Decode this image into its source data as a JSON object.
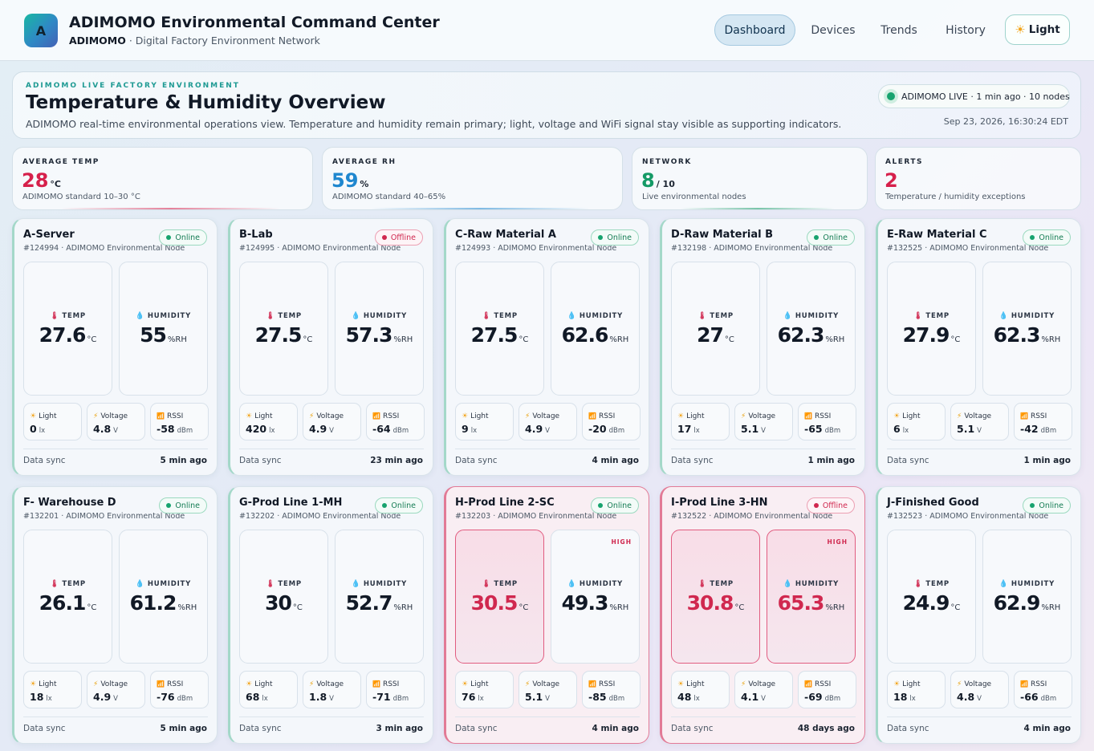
{
  "header": {
    "logo_letter": "A",
    "title": "ADIMOMO Environmental Command Center",
    "brand": "ADIMOMO",
    "subtitle": " · Digital Factory Environment Network",
    "nav": [
      "Dashboard",
      "Devices",
      "Trends",
      "History"
    ],
    "active_nav": "Dashboard",
    "theme_icon": "sun-icon",
    "theme_label": "Light"
  },
  "hero": {
    "eyebrow": "ADIMOMO LIVE FACTORY ENVIRONMENT",
    "title": "Temperature & Humidity Overview",
    "description": "ADIMOMO real-time environmental operations view. Temperature and humidity remain primary; light, voltage and WiFi signal stay visible as supporting indicators.",
    "live_status": "ADIMOMO LIVE · 1 min ago · 10 nodes",
    "datetime": "Sep 23, 2026, 16:30:24 EDT"
  },
  "stats": [
    {
      "label": "AVERAGE TEMP",
      "value": "28",
      "unit": "°C",
      "note": "ADIMOMO standard 10–30 °C",
      "color": "#d6204b"
    },
    {
      "label": "AVERAGE RH",
      "value": "59",
      "unit": "%",
      "note": "ADIMOMO standard 40–65%",
      "color": "#1f87cf"
    },
    {
      "label": "NETWORK",
      "value": "8",
      "unit": "/ 10",
      "note": "Live environmental nodes",
      "color": "#149a66"
    },
    {
      "label": "ALERTS",
      "value": "2",
      "unit": "",
      "note": "Temperature / humidity exceptions",
      "color": "#d6204b"
    }
  ],
  "labels": {
    "temp": "TEMP",
    "humidity": "HUMIDITY",
    "temp_unit": "°C",
    "humidity_unit": "%RH",
    "light": "Light",
    "voltage": "Voltage",
    "rssi": "RSSI",
    "light_unit": "lx",
    "voltage_unit": "V",
    "rssi_unit": "dBm",
    "data_sync": "Data sync",
    "high": "HIGH"
  },
  "devices": [
    {
      "name": "A-Server",
      "id_line": "#124994 · ADIMOMO Environmental Node",
      "status": "Online",
      "temp": "27.6",
      "humidity": "55",
      "light": "0",
      "voltage": "4.8",
      "rssi": "-58",
      "sync": "5 min ago",
      "temp_high": false,
      "hum_high": false
    },
    {
      "name": "B-Lab",
      "id_line": "#124995 · ADIMOMO Environmental Node",
      "status": "Offline",
      "temp": "27.5",
      "humidity": "57.3",
      "light": "420",
      "voltage": "4.9",
      "rssi": "-64",
      "sync": "23 min ago",
      "temp_high": false,
      "hum_high": false
    },
    {
      "name": "C-Raw Material A",
      "id_line": "#124993 · ADIMOMO Environmental Node",
      "status": "Online",
      "temp": "27.5",
      "humidity": "62.6",
      "light": "9",
      "voltage": "4.9",
      "rssi": "-20",
      "sync": "4 min ago",
      "temp_high": false,
      "hum_high": false
    },
    {
      "name": "D-Raw Material B",
      "id_line": "#132198 · ADIMOMO Environmental Node",
      "status": "Online",
      "temp": "27",
      "humidity": "62.3",
      "light": "17",
      "voltage": "5.1",
      "rssi": "-65",
      "sync": "1 min ago",
      "temp_high": false,
      "hum_high": false
    },
    {
      "name": "E-Raw Material C",
      "id_line": "#132525 · ADIMOMO Environmental Node",
      "status": "Online",
      "temp": "27.9",
      "humidity": "62.3",
      "light": "6",
      "voltage": "5.1",
      "rssi": "-42",
      "sync": "1 min ago",
      "temp_high": false,
      "hum_high": false
    },
    {
      "name": "F- Warehouse D",
      "id_line": "#132201 · ADIMOMO Environmental Node",
      "status": "Online",
      "temp": "26.1",
      "humidity": "61.2",
      "light": "18",
      "voltage": "4.9",
      "rssi": "-76",
      "sync": "5 min ago",
      "temp_high": false,
      "hum_high": false
    },
    {
      "name": "G-Prod Line 1-MH",
      "id_line": "#132202 · ADIMOMO Environmental Node",
      "status": "Online",
      "temp": "30",
      "humidity": "52.7",
      "light": "68",
      "voltage": "1.8",
      "rssi": "-71",
      "sync": "3 min ago",
      "temp_high": false,
      "hum_high": false
    },
    {
      "name": "H-Prod Line 2-SC",
      "id_line": "#132203 · ADIMOMO Environmental Node",
      "status": "Online",
      "temp": "30.5",
      "humidity": "49.3",
      "light": "76",
      "voltage": "5.1",
      "rssi": "-85",
      "sync": "4 min ago",
      "temp_high": true,
      "hum_high": false
    },
    {
      "name": "I-Prod Line 3-HN",
      "id_line": "#132522 · ADIMOMO Environmental Node",
      "status": "Offline",
      "temp": "30.8",
      "humidity": "65.3",
      "light": "48",
      "voltage": "4.1",
      "rssi": "-69",
      "sync": "48 days ago",
      "temp_high": true,
      "hum_high": true
    },
    {
      "name": "J-Finished Good",
      "id_line": "#132523 · ADIMOMO Environmental Node",
      "status": "Online",
      "temp": "24.9",
      "humidity": "62.9",
      "light": "18",
      "voltage": "4.8",
      "rssi": "-66",
      "sync": "4 min ago",
      "temp_high": false,
      "hum_high": false
    }
  ]
}
